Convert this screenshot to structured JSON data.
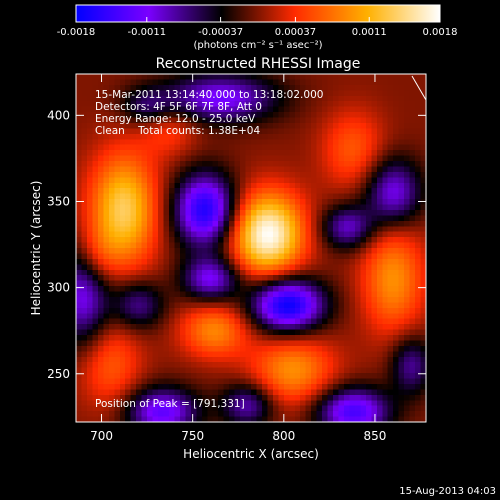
{
  "chart_data": {
    "type": "heatmap",
    "title": "Reconstructed RHESSI Image",
    "xlabel": "Heliocentric X (arcsec)",
    "ylabel": "Heliocentric Y (arcsec)",
    "xlim": [
      686,
      878
    ],
    "ylim": [
      222,
      424
    ],
    "x_ticks": [
      700,
      750,
      800,
      850
    ],
    "y_ticks": [
      250,
      300,
      350,
      400
    ],
    "colorbar": {
      "range": [
        -0.0018,
        0.0018
      ],
      "tick_values": [
        -0.0018,
        -0.0011,
        -0.00037,
        0.00037,
        0.0011,
        0.0018
      ],
      "tick_labels": [
        "-0.0018",
        "-0.0011",
        "-0.00037",
        "0.00037",
        "0.0011",
        "0.0018"
      ],
      "unit_text": "(photons cm⁻² s⁻¹ asec⁻²)",
      "colormap": [
        "#0000ff",
        "#7a00ff",
        "#000000",
        "#ff2a00",
        "#ffb000",
        "#ffffff"
      ]
    },
    "info_lines": [
      "15-Mar-2011 13:14:40.000 to 13:18:02.000",
      "Detectors: 4F 5F 6F 7F 8F, Att 0",
      "Energy Range: 12.0 - 25.0 keV",
      "Clean    Total counts: 1.38E+04"
    ],
    "peak_label": "Position of Peak = [791,331]",
    "peak": {
      "x": 791,
      "y": 331,
      "value": 0.0018
    },
    "components": [
      {
        "x": 791,
        "y": 331,
        "sx": 14,
        "sy": 17,
        "amp": 0.0018
      },
      {
        "x": 712,
        "y": 345,
        "sx": 13,
        "sy": 23,
        "amp": 0.00135
      },
      {
        "x": 860,
        "y": 305,
        "sx": 12,
        "sy": 22,
        "amp": 0.0009
      },
      {
        "x": 805,
        "y": 252,
        "sx": 16,
        "sy": 14,
        "amp": 0.0009
      },
      {
        "x": 762,
        "y": 275,
        "sx": 13,
        "sy": 11,
        "amp": 0.00085
      },
      {
        "x": 705,
        "y": 255,
        "sx": 12,
        "sy": 18,
        "amp": 0.0006
      },
      {
        "x": 838,
        "y": 380,
        "sx": 12,
        "sy": 16,
        "amp": 0.0006
      },
      {
        "x": 737,
        "y": 392,
        "sx": 11,
        "sy": 11,
        "amp": 0.00045
      },
      {
        "x": 697,
        "y": 318,
        "sx": 8,
        "sy": 12,
        "amp": 0.0004
      },
      {
        "x": 757,
        "y": 345,
        "sx": 12,
        "sy": 15,
        "amp": -0.00165
      },
      {
        "x": 802,
        "y": 290,
        "sx": 14,
        "sy": 11,
        "amp": -0.0018
      },
      {
        "x": 838,
        "y": 228,
        "sx": 14,
        "sy": 10,
        "amp": -0.0014
      },
      {
        "x": 765,
        "y": 410,
        "sx": 22,
        "sy": 10,
        "amp": -0.00115
      },
      {
        "x": 733,
        "y": 228,
        "sx": 14,
        "sy": 10,
        "amp": -0.00125
      },
      {
        "x": 690,
        "y": 295,
        "sx": 10,
        "sy": 20,
        "amp": -0.0011
      },
      {
        "x": 860,
        "y": 355,
        "sx": 11,
        "sy": 14,
        "amp": -0.0011
      },
      {
        "x": 835,
        "y": 335,
        "sx": 10,
        "sy": 9,
        "amp": -0.00095
      },
      {
        "x": 760,
        "y": 305,
        "sx": 11,
        "sy": 9,
        "amp": -0.0011
      },
      {
        "x": 720,
        "y": 290,
        "sx": 10,
        "sy": 10,
        "amp": -0.0008
      },
      {
        "x": 780,
        "y": 232,
        "sx": 10,
        "sy": 9,
        "amp": -0.0009
      },
      {
        "x": 870,
        "y": 255,
        "sx": 8,
        "sy": 12,
        "amp": -0.0008
      },
      {
        "x": 725,
        "y": 405,
        "sx": 10,
        "sy": 8,
        "amp": -0.0006
      }
    ]
  },
  "footer": {
    "date": "15-Aug-2013 04:03"
  }
}
